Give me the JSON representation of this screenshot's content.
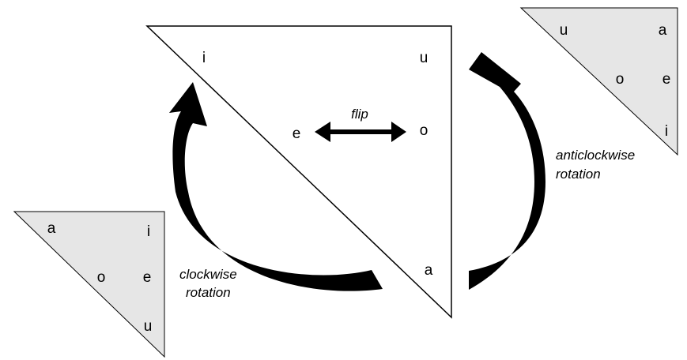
{
  "diagram": {
    "main_triangle": {
      "letters": {
        "top_left": "i",
        "top_right": "u",
        "middle_left": "e",
        "middle_right": "o",
        "bottom": "a"
      }
    },
    "flip": {
      "label": "flip"
    },
    "top_right_triangle": {
      "letters": {
        "top_left": "u",
        "top_right": "a",
        "middle_left": "o",
        "middle_right": "e",
        "bottom": "i"
      }
    },
    "bottom_left_triangle": {
      "letters": {
        "top_left": "a",
        "top_right": "i",
        "middle_left": "o",
        "middle_right": "e",
        "bottom": "u"
      }
    },
    "clockwise": {
      "label_line1": "clockwise",
      "label_line2": "rotation"
    },
    "anticlockwise": {
      "label_line1": "anticlockwise",
      "label_line2": "rotation"
    },
    "colors": {
      "small_triangle_fill": "#e6e6e6",
      "stroke": "#000000",
      "background": "#ffffff"
    }
  }
}
